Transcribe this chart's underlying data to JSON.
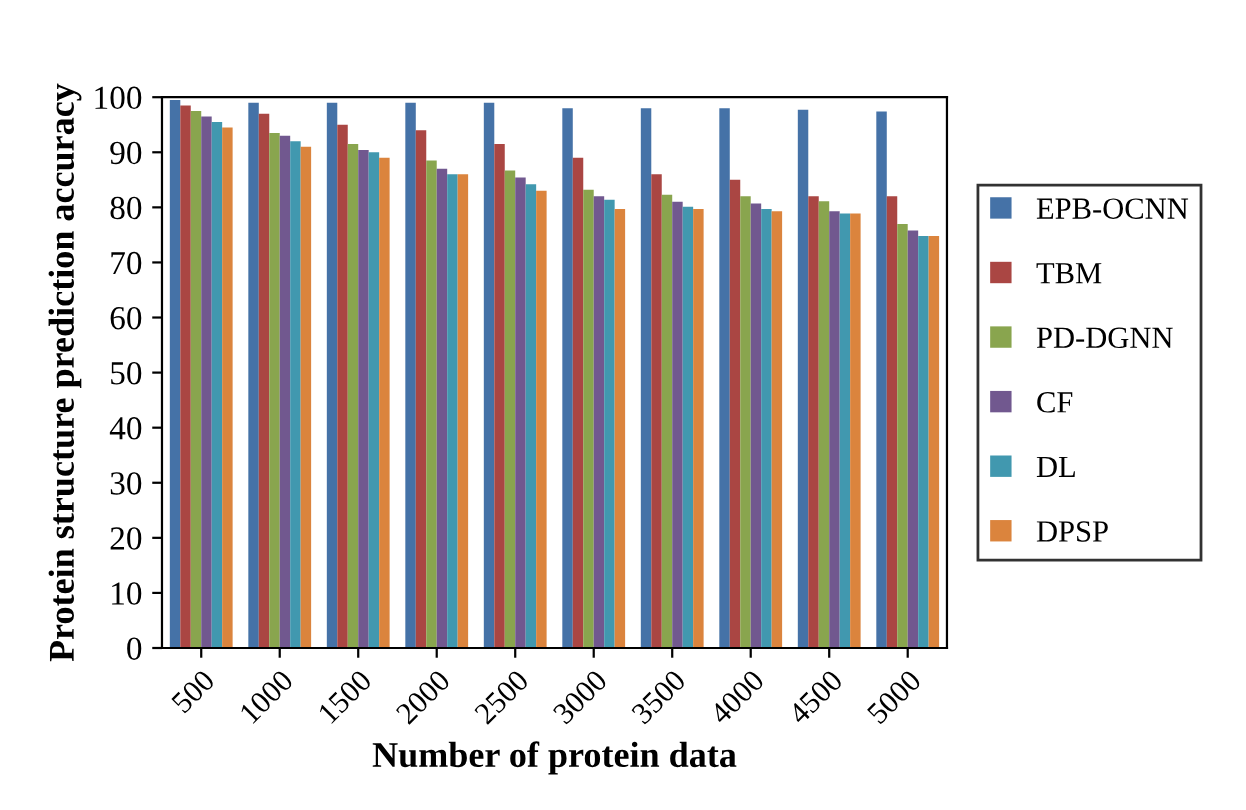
{
  "chart_data": {
    "type": "bar",
    "xlabel": "Number of protein data",
    "ylabel": "Protein structure prediction accuracy",
    "categories": [
      "500",
      "1000",
      "1500",
      "2000",
      "2500",
      "3000",
      "3500",
      "4000",
      "4500",
      "5000"
    ],
    "series": [
      {
        "name": "EPB-OCNN",
        "color": "#4572a7",
        "values": [
          99.5,
          99,
          99,
          99,
          99,
          98,
          98,
          98,
          97.7,
          97.4
        ]
      },
      {
        "name": "TBM",
        "color": "#aa4643",
        "values": [
          98.5,
          97,
          95,
          94,
          91.5,
          89,
          86,
          85,
          82,
          82
        ]
      },
      {
        "name": "PD-DGNN",
        "color": "#89a54e",
        "values": [
          97.5,
          93.5,
          91.5,
          88.5,
          86.7,
          83.2,
          82.3,
          82,
          81.1,
          77
        ]
      },
      {
        "name": "CF",
        "color": "#71588f",
        "values": [
          96.5,
          93,
          90.4,
          87,
          85.4,
          82,
          81,
          80.7,
          79.3,
          75.8
        ]
      },
      {
        "name": "DL",
        "color": "#4198af",
        "values": [
          95.5,
          92,
          90,
          86,
          84.2,
          81.4,
          80.1,
          79.7,
          78.9,
          74.8
        ]
      },
      {
        "name": "DPSP",
        "color": "#db843d",
        "values": [
          94.5,
          91,
          89,
          86,
          83,
          79.7,
          79.7,
          79.3,
          78.9,
          74.8
        ]
      }
    ],
    "ylim": [
      0,
      100
    ],
    "yticks": [
      0,
      10,
      20,
      30,
      40,
      50,
      60,
      70,
      80,
      90,
      100
    ],
    "grid": false,
    "legend": "right"
  }
}
